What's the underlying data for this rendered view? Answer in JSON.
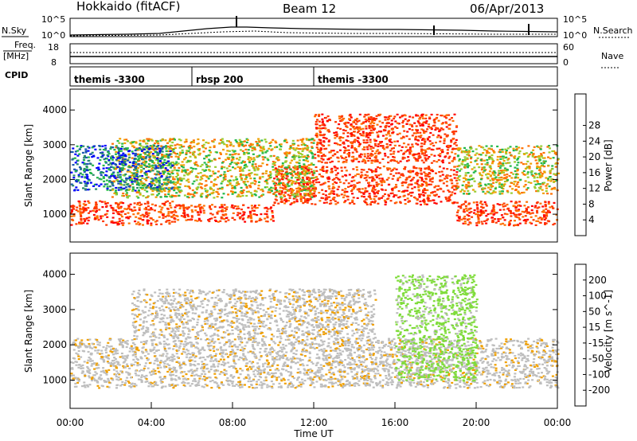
{
  "header": {
    "station": "Hokkaido (fitACF)",
    "beam": "Beam 12",
    "date": "06/Apr/2013"
  },
  "top_panels": {
    "nsky_label": "N.Sky",
    "nsearch_label": "N.Search",
    "noise_ticks_left": [
      "10^5",
      "10^0"
    ],
    "noise_ticks_right": [
      "10^5",
      "10^0"
    ],
    "freq_label": "Freq.",
    "freq_unit": "[MHz]",
    "freq_ticks": [
      "18",
      "8"
    ],
    "nave_label": "Nave",
    "nave_ticks": [
      "60",
      "0"
    ],
    "cpid_label": "CPID",
    "cpid_segments": [
      {
        "label": "themis -3300",
        "start_hour": 0,
        "end_hour": 6
      },
      {
        "label": "rbsp 200",
        "start_hour": 6,
        "end_hour": 12
      },
      {
        "label": "themis -3300",
        "start_hour": 12,
        "end_hour": 24
      }
    ]
  },
  "chart_data": [
    {
      "type": "heatmap",
      "name": "power",
      "ylabel": "Slant Range [km]",
      "xlim": [
        0,
        24
      ],
      "ylim": [
        200,
        4600
      ],
      "yticks": [
        "1000",
        "2000",
        "3000",
        "4000"
      ],
      "colorbar": {
        "label": "Power [dB]",
        "ticks": [
          "4",
          "8",
          "12",
          "16",
          "20",
          "24",
          "28"
        ],
        "colors": [
          "#0000ff",
          "#1a55b0",
          "#2b8a6a",
          "#22b84a",
          "#9acd32",
          "#f0a000",
          "#ff7000",
          "#ff3800",
          "#ff0000"
        ]
      },
      "bands": [
        {
          "start_hour": 0,
          "end_hour": 5,
          "range_lo": 700,
          "range_hi": 1400,
          "level": "high"
        },
        {
          "start_hour": 5,
          "end_hour": 10,
          "range_lo": 800,
          "range_hi": 1300,
          "level": "high"
        },
        {
          "start_hour": 10,
          "end_hour": 19,
          "range_lo": 1300,
          "range_hi": 2400,
          "level": "high"
        },
        {
          "start_hour": 19,
          "end_hour": 24,
          "range_lo": 700,
          "range_hi": 1400,
          "level": "high"
        },
        {
          "start_hour": 2,
          "end_hour": 12,
          "range_lo": 1500,
          "range_hi": 3200,
          "level": "medium"
        },
        {
          "start_hour": 12,
          "end_hour": 19,
          "range_lo": 2500,
          "range_hi": 3900,
          "level": "high"
        },
        {
          "start_hour": 19,
          "end_hour": 24,
          "range_lo": 1600,
          "range_hi": 3000,
          "level": "medium"
        },
        {
          "start_hour": 0,
          "end_hour": 5,
          "range_lo": 1700,
          "range_hi": 3000,
          "level": "low"
        }
      ]
    },
    {
      "type": "heatmap",
      "name": "velocity",
      "ylabel": "Slant Range [km]",
      "xlabel": "Time UT",
      "xlim": [
        0,
        24
      ],
      "ylim": [
        200,
        4600
      ],
      "yticks": [
        "1000",
        "2000",
        "3000",
        "4000"
      ],
      "xticks": [
        "00:00",
        "04:00",
        "08:00",
        "12:00",
        "16:00",
        "20:00",
        "00:00"
      ],
      "colorbar": {
        "label": "Velocity [m s^-1]",
        "ticks": [
          "200",
          "100",
          "50",
          "15",
          "-15",
          "-50",
          "-100",
          "-200"
        ],
        "colors": [
          "#1030c8",
          "#1a6aa0",
          "#2e8b57",
          "#7fdc3a",
          "#bebebe",
          "#bebebe",
          "#f0a000",
          "#ff7000",
          "#ff0000"
        ]
      },
      "bands": [
        {
          "start_hour": 0,
          "end_hour": 24,
          "range_lo": 800,
          "range_hi": 2200,
          "level": "ground"
        },
        {
          "start_hour": 3,
          "end_hour": 15,
          "range_lo": 2200,
          "range_hi": 3600,
          "level": "ground"
        },
        {
          "start_hour": 16,
          "end_hour": 20,
          "range_lo": 1000,
          "range_hi": 4000,
          "level": "positive"
        }
      ]
    }
  ]
}
